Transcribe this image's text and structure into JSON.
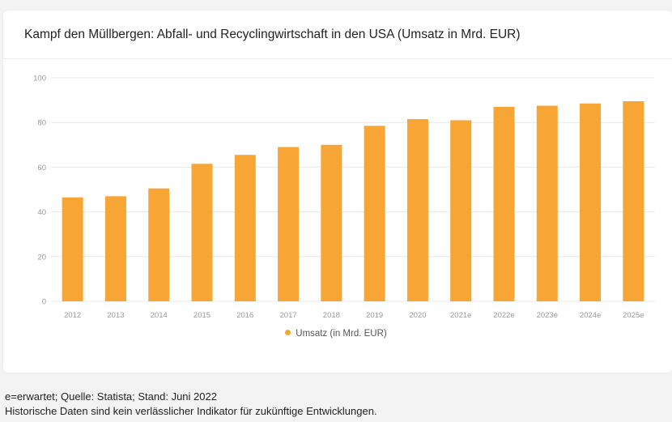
{
  "title": "Kampf den Müllbergen: Abfall- und Recyclingwirtschaft in den USA (Umsatz in Mrd. EUR)",
  "footnote_line1": "e=erwartet; Quelle: Statista; Stand: Juni 2022",
  "footnote_line2": "Historische Daten sind kein verlässlicher Indikator für zukünftige Entwicklungen.",
  "colors": {
    "bar": "#f7a535",
    "grid": "#e9e9e9",
    "tick": "#999999"
  },
  "chart_data": {
    "type": "bar",
    "categories": [
      "2012",
      "2013",
      "2014",
      "2015",
      "2016",
      "2017",
      "2018",
      "2019",
      "2020",
      "2021e",
      "2022e",
      "2023e",
      "2024e",
      "2025e"
    ],
    "series": [
      {
        "name": "Umsatz (in Mrd. EUR)",
        "values": [
          46.5,
          47,
          50.5,
          61.5,
          65.5,
          69,
          70,
          78.5,
          81.5,
          81,
          87,
          87.5,
          88.5,
          89.5
        ]
      }
    ],
    "ylim": [
      0,
      100
    ],
    "yticks": [
      "0",
      "20",
      "40",
      "60",
      "80",
      "100"
    ],
    "ytick_values": [
      0,
      20,
      40,
      60,
      80,
      100
    ],
    "grid": true,
    "legend_position": "bottom-center"
  }
}
